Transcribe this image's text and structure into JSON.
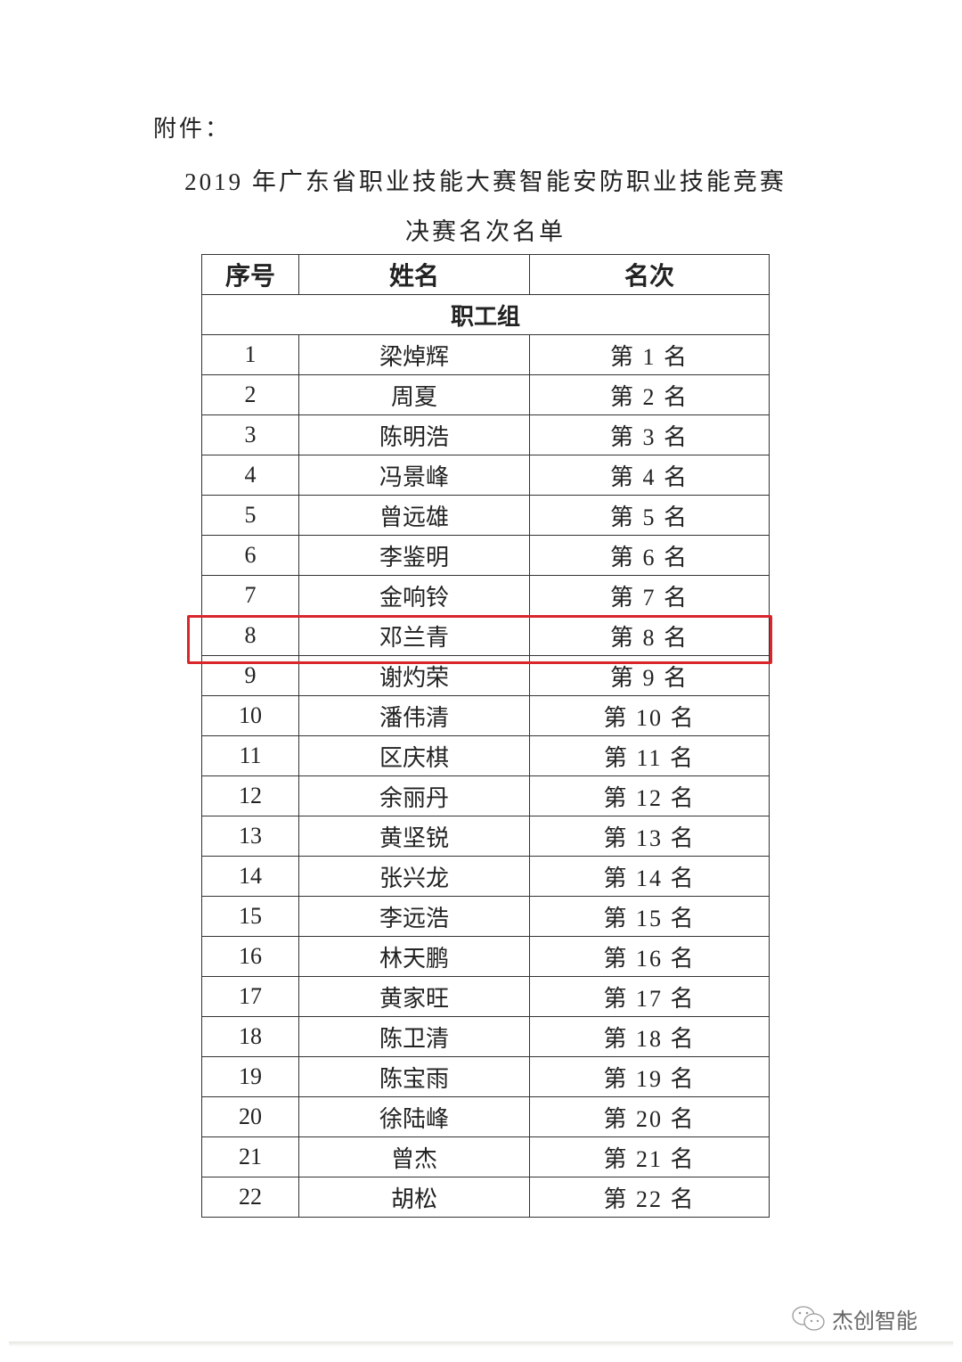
{
  "document": {
    "attachment_label": "附件：",
    "title_line1": "2019 年广东省职业技能大赛智能安防职业技能竞赛",
    "title_line2": "决赛名次名单",
    "table": {
      "headers": [
        "序号",
        "姓名",
        "名次"
      ],
      "group": "职工组",
      "rows": [
        {
          "no": "1",
          "name": "梁焯辉",
          "rank": "第 1 名"
        },
        {
          "no": "2",
          "name": "周夏",
          "rank": "第 2 名"
        },
        {
          "no": "3",
          "name": "陈明浩",
          "rank": "第 3 名"
        },
        {
          "no": "4",
          "name": "冯景峰",
          "rank": "第 4 名"
        },
        {
          "no": "5",
          "name": "曾远雄",
          "rank": "第 5 名"
        },
        {
          "no": "6",
          "name": "李鉴明",
          "rank": "第 6 名"
        },
        {
          "no": "7",
          "name": "金响铃",
          "rank": "第 7 名"
        },
        {
          "no": "8",
          "name": "邓兰青",
          "rank": "第 8 名"
        },
        {
          "no": "9",
          "name": "谢灼荣",
          "rank": "第 9 名"
        },
        {
          "no": "10",
          "name": "潘伟清",
          "rank": "第 10 名"
        },
        {
          "no": "11",
          "name": "区庆棋",
          "rank": "第 11 名"
        },
        {
          "no": "12",
          "name": "余丽丹",
          "rank": "第 12 名"
        },
        {
          "no": "13",
          "name": "黄坚锐",
          "rank": "第 13 名"
        },
        {
          "no": "14",
          "name": "张兴龙",
          "rank": "第 14 名"
        },
        {
          "no": "15",
          "name": "李远浩",
          "rank": "第 15 名"
        },
        {
          "no": "16",
          "name": "林天鹏",
          "rank": "第 16 名"
        },
        {
          "no": "17",
          "name": "黄家旺",
          "rank": "第 17 名"
        },
        {
          "no": "18",
          "name": "陈卫清",
          "rank": "第 18 名"
        },
        {
          "no": "19",
          "name": "陈宝雨",
          "rank": "第 19 名"
        },
        {
          "no": "20",
          "name": "徐陆峰",
          "rank": "第 20 名"
        },
        {
          "no": "21",
          "name": "曾杰",
          "rank": "第 21 名"
        },
        {
          "no": "22",
          "name": "胡松",
          "rank": "第 22 名"
        }
      ],
      "highlighted_row_no": "8",
      "highlight_color": "#d8262b"
    }
  },
  "watermark": {
    "icon": "wechat-icon",
    "text": "杰创智能"
  }
}
